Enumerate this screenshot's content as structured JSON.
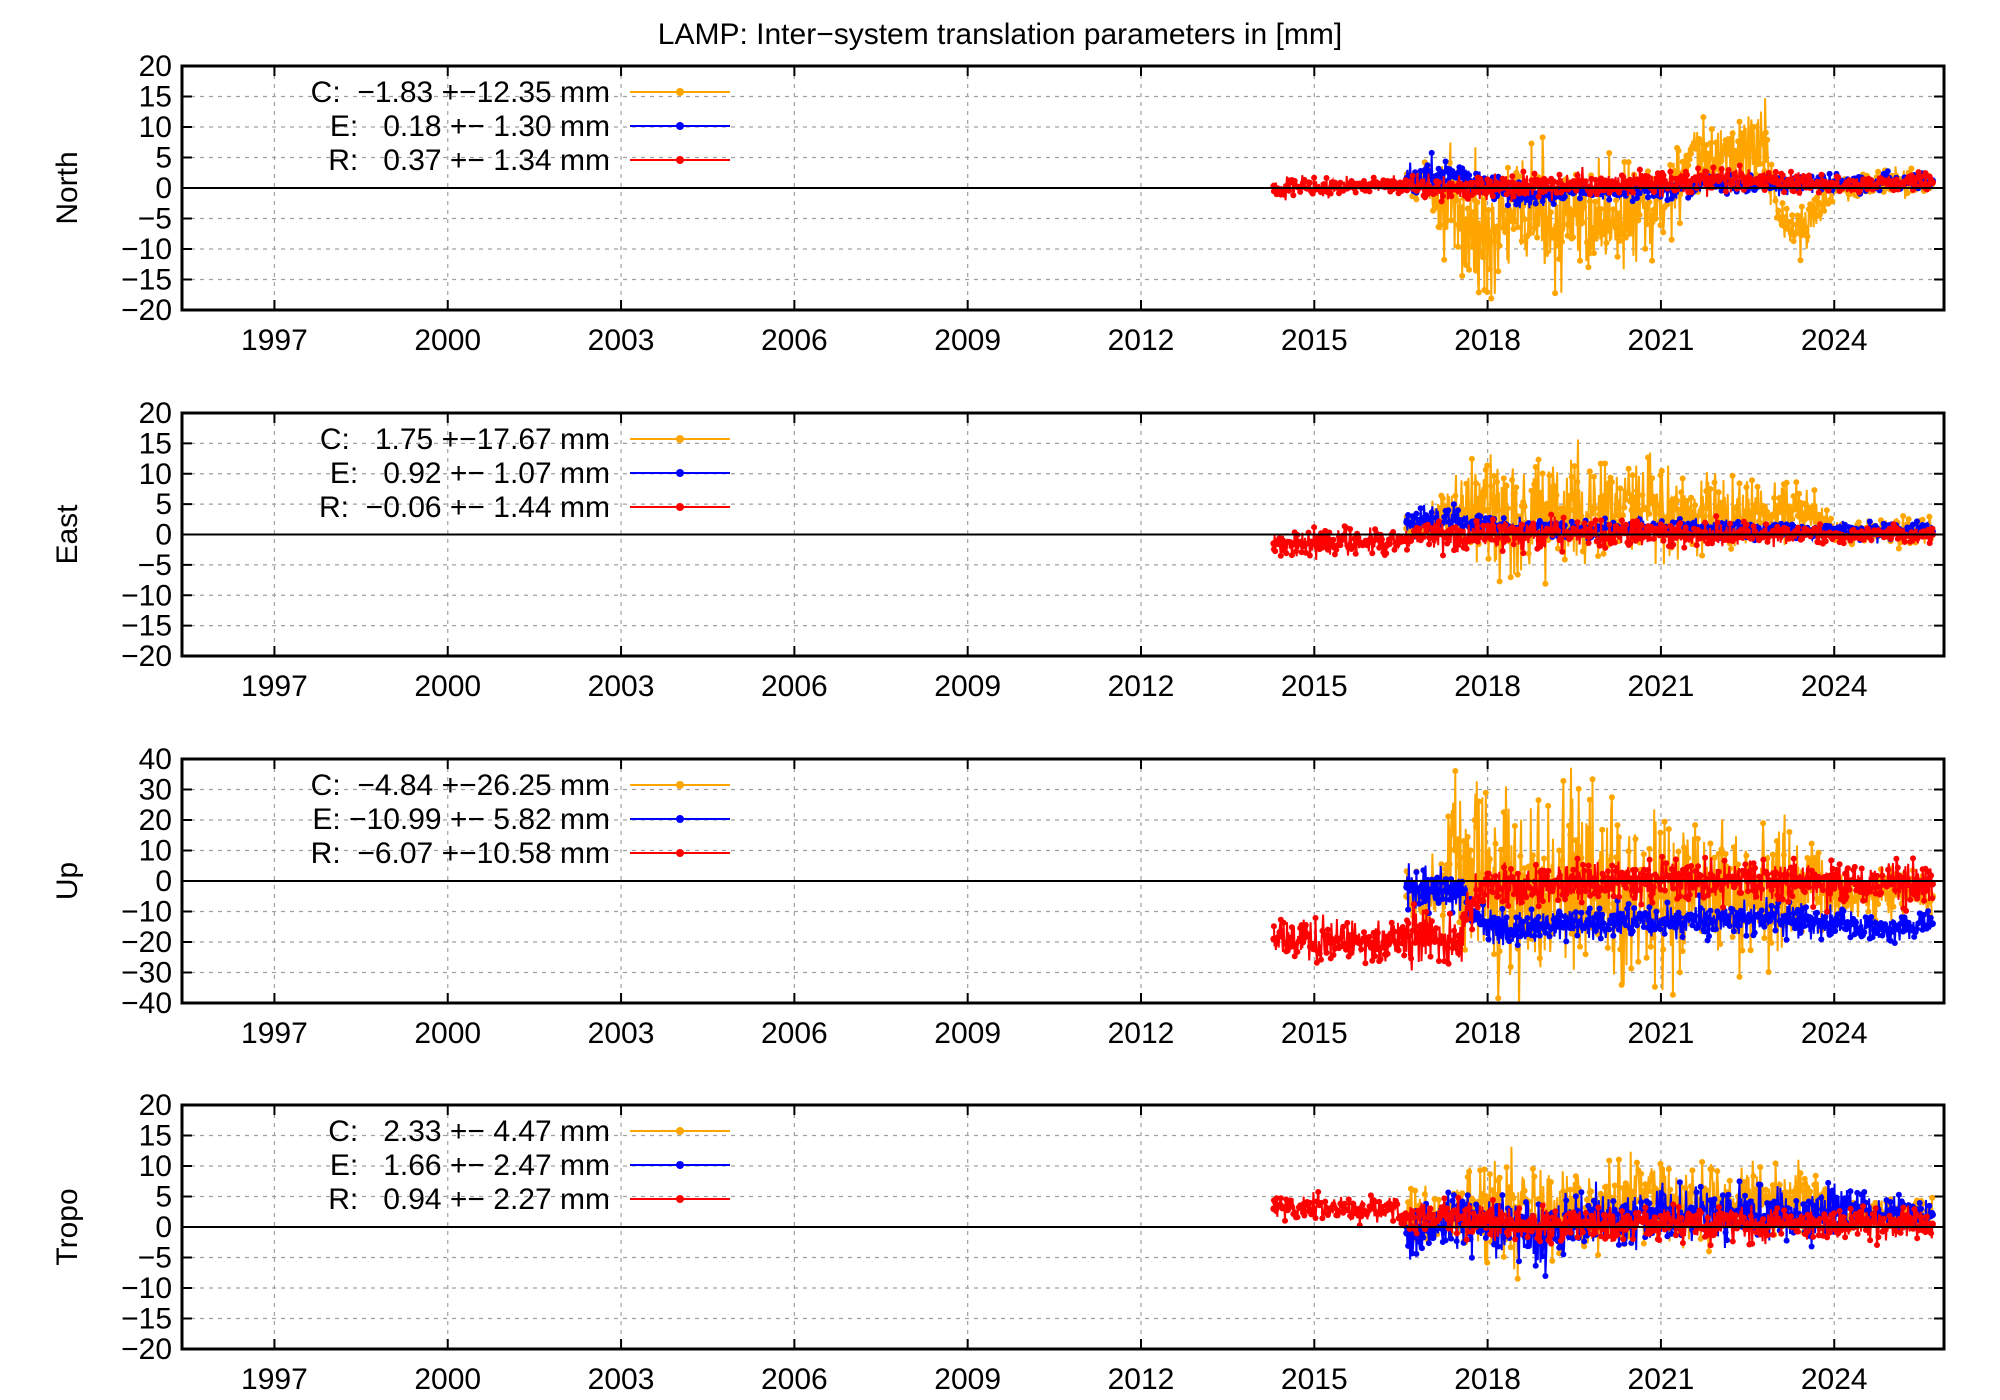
{
  "title": "LAMP: Inter−system translation parameters in [mm]",
  "colors": {
    "C": "#FFA500",
    "E": "#0000FF",
    "R": "#FF0000"
  },
  "chart_data": [
    {
      "type": "line",
      "ylabel": "North",
      "xlim": [
        1995.4,
        2025.9
      ],
      "ylim": [
        -20,
        20
      ],
      "xticks": [
        1997,
        2000,
        2003,
        2006,
        2009,
        2012,
        2015,
        2018,
        2021,
        2024
      ],
      "yticks": [
        -20,
        -15,
        -10,
        -5,
        0,
        5,
        10,
        15,
        20
      ],
      "legend": [
        {
          "key": "C",
          "text": "C:  −1.83 +−12.35 mm"
        },
        {
          "key": "E",
          "text": "E:   0.18 +− 1.30 mm"
        },
        {
          "key": "R",
          "text": "R:   0.37 +− 1.34 mm"
        }
      ],
      "series": [
        {
          "name": "C",
          "x": [
            2016.6,
            2017.0,
            2017.5,
            2017.9,
            2018.4,
            2018.9,
            2019.4,
            2019.9,
            2020.4,
            2020.9,
            2021.3,
            2021.8,
            2022.3,
            2022.8,
            2023.1,
            2023.5,
            2024.0,
            2024.5,
            2025.0,
            2025.7
          ],
          "values": [
            0.5,
            1.0,
            -6.0,
            -8.0,
            -5.0,
            -4.0,
            -6.0,
            -5.0,
            -4.5,
            -5.0,
            2.0,
            5.0,
            6.0,
            7.0,
            -6.0,
            -7.0,
            0.5,
            0.5,
            1.0,
            1.0
          ],
          "spread": [
            2,
            2,
            8,
            7,
            7,
            7,
            6,
            6,
            6,
            6,
            5,
            4,
            4,
            5,
            3,
            3,
            1.5,
            1.5,
            1.5,
            1.5
          ]
        },
        {
          "name": "E",
          "x": [
            2016.6,
            2017.0,
            2017.5,
            2017.9,
            2018.5,
            2019.0,
            2019.5,
            2020.0,
            2020.5,
            2021.0,
            2021.5,
            2022.0,
            2022.5,
            2023.0,
            2023.5,
            2024.0,
            2024.5,
            2025.0,
            2025.7
          ],
          "values": [
            1.5,
            2.0,
            2.5,
            1.0,
            -1.0,
            -1.0,
            -0.5,
            -0.5,
            -0.5,
            -0.5,
            0.0,
            0.5,
            0.5,
            0.5,
            0.8,
            1.0,
            0.8,
            1.0,
            1.2
          ],
          "spread": [
            2,
            2,
            1.5,
            1.5,
            1.5,
            1.2,
            1.0,
            1.0,
            1.0,
            1.0,
            1.0,
            1.0,
            1.0,
            1.0,
            1.0,
            1.0,
            1.0,
            1.0,
            1.0
          ]
        },
        {
          "name": "R",
          "x": [
            2014.3,
            2014.8,
            2015.3,
            2015.8,
            2016.3,
            2016.6,
            2017.0,
            2017.5,
            2018.0,
            2018.5,
            2019.0,
            2019.5,
            2020.0,
            2020.5,
            2021.0,
            2021.5,
            2022.0,
            2022.5,
            2023.0,
            2023.5,
            2024.0,
            2024.5,
            2025.0,
            2025.7
          ],
          "values": [
            0.3,
            0.4,
            0.2,
            0.3,
            0.4,
            0.5,
            0.0,
            0.2,
            0.0,
            0.3,
            0.5,
            0.6,
            0.5,
            0.7,
            0.5,
            1.0,
            1.2,
            1.5,
            1.0,
            0.8,
            0.5,
            0.6,
            0.8,
            0.9
          ],
          "spread": [
            1.2,
            1.2,
            1.0,
            1.0,
            1.0,
            1.2,
            1.5,
            1.5,
            1.5,
            1.5,
            1.5,
            1.5,
            1.5,
            1.5,
            1.5,
            1.5,
            1.5,
            1.5,
            1.3,
            1.2,
            1.0,
            1.0,
            1.0,
            1.0
          ]
        }
      ]
    },
    {
      "type": "line",
      "ylabel": "East",
      "xlim": [
        1995.4,
        2025.9
      ],
      "ylim": [
        -20,
        20
      ],
      "xticks": [
        1997,
        2000,
        2003,
        2006,
        2009,
        2012,
        2015,
        2018,
        2021,
        2024
      ],
      "yticks": [
        -20,
        -15,
        -10,
        -5,
        0,
        5,
        10,
        15,
        20
      ],
      "legend": [
        {
          "key": "C",
          "text": "C:   1.75 +−17.67 mm"
        },
        {
          "key": "E",
          "text": "E:   0.92 +− 1.07 mm"
        },
        {
          "key": "R",
          "text": "R:  −0.06 +− 1.44 mm"
        }
      ],
      "series": [
        {
          "name": "C",
          "x": [
            2016.6,
            2017.0,
            2017.5,
            2018.0,
            2018.5,
            2019.0,
            2019.5,
            2020.0,
            2020.5,
            2021.0,
            2021.5,
            2022.0,
            2022.5,
            2023.0,
            2023.5,
            2024.0,
            2024.5,
            2025.0,
            2025.7
          ],
          "values": [
            1.0,
            1.5,
            4.0,
            4.0,
            3.0,
            4.0,
            4.0,
            4.0,
            4.0,
            3.5,
            3.5,
            3.5,
            3.5,
            4.0,
            5.0,
            0.5,
            0.5,
            0.5,
            0.5
          ],
          "spread": [
            2,
            2,
            5,
            8,
            8,
            7,
            7,
            6,
            6,
            6,
            5,
            5,
            4,
            4,
            3,
            1.5,
            1.5,
            1.5,
            1.5
          ]
        },
        {
          "name": "E",
          "x": [
            2016.6,
            2017.0,
            2017.5,
            2018.0,
            2018.5,
            2019.0,
            2019.5,
            2020.0,
            2020.5,
            2021.0,
            2021.5,
            2022.0,
            2022.5,
            2023.0,
            2023.5,
            2024.0,
            2024.5,
            2025.0,
            2025.7
          ],
          "values": [
            2.0,
            2.5,
            2.0,
            1.5,
            1.0,
            1.0,
            0.8,
            0.8,
            1.0,
            1.0,
            1.0,
            0.8,
            0.8,
            0.8,
            0.5,
            0.5,
            0.5,
            0.5,
            0.5
          ],
          "spread": [
            2,
            2,
            1.5,
            1.2,
            1.0,
            1.0,
            1.0,
            1.0,
            1.0,
            1.0,
            1.0,
            1.0,
            1.0,
            1.0,
            1.0,
            1.0,
            1.0,
            1.0,
            1.0
          ]
        },
        {
          "name": "R",
          "x": [
            2014.3,
            2014.8,
            2015.3,
            2015.8,
            2016.3,
            2016.6,
            2017.0,
            2017.5,
            2018.0,
            2018.5,
            2019.0,
            2019.5,
            2020.0,
            2020.5,
            2021.0,
            2021.5,
            2022.0,
            2022.5,
            2023.0,
            2023.5,
            2024.0,
            2024.5,
            2025.0,
            2025.7
          ],
          "values": [
            -1.5,
            -1.5,
            -1.2,
            -1.5,
            -1.5,
            -0.5,
            -0.5,
            -0.5,
            0.0,
            0.0,
            0.2,
            0.2,
            0.0,
            0.2,
            0.2,
            0.0,
            0.0,
            0.0,
            0.0,
            0.0,
            0.0,
            0.0,
            0.0,
            0.0
          ],
          "spread": [
            1.5,
            1.5,
            1.5,
            1.5,
            1.5,
            1.5,
            1.5,
            1.5,
            1.8,
            1.8,
            1.8,
            1.5,
            1.5,
            1.5,
            1.5,
            1.5,
            1.5,
            1.2,
            1.2,
            1.2,
            1.0,
            1.0,
            1.0,
            1.0
          ]
        }
      ]
    },
    {
      "type": "line",
      "ylabel": "Up",
      "xlim": [
        1995.4,
        2025.9
      ],
      "ylim": [
        -40,
        40
      ],
      "xticks": [
        1997,
        2000,
        2003,
        2006,
        2009,
        2012,
        2015,
        2018,
        2021,
        2024
      ],
      "yticks": [
        -40,
        -30,
        -20,
        -10,
        0,
        10,
        20,
        30,
        40
      ],
      "legend": [
        {
          "key": "C",
          "text": "C:  −4.84 +−26.25 mm"
        },
        {
          "key": "E",
          "text": "E: −10.99 +− 5.82 mm"
        },
        {
          "key": "R",
          "text": "R:  −6.07 +−10.58 mm"
        }
      ],
      "series": [
        {
          "name": "C",
          "x": [
            2016.6,
            2017.0,
            2017.5,
            2018.0,
            2018.5,
            2019.0,
            2019.5,
            2020.0,
            2020.5,
            2021.0,
            2021.5,
            2022.0,
            2022.5,
            2023.0,
            2023.5,
            2024.0,
            2024.5,
            2025.0,
            2025.7
          ],
          "values": [
            -5,
            -5,
            5,
            0,
            -5,
            -5,
            0,
            -5,
            -5,
            -5,
            -5,
            -5,
            -5,
            -5,
            0,
            -5,
            -5,
            -5,
            -5
          ],
          "spread": [
            8,
            8,
            20,
            22,
            22,
            20,
            20,
            20,
            18,
            18,
            18,
            16,
            16,
            16,
            14,
            6,
            6,
            6,
            6
          ]
        },
        {
          "name": "E",
          "x": [
            2016.6,
            2017.0,
            2017.5,
            2017.9,
            2018.3,
            2018.8,
            2019.3,
            2019.8,
            2020.3,
            2020.8,
            2021.3,
            2021.8,
            2022.3,
            2022.8,
            2023.3,
            2023.8,
            2024.3,
            2024.8,
            2025.3,
            2025.7
          ],
          "values": [
            -2,
            -3,
            -3,
            -14,
            -15,
            -15,
            -14,
            -14,
            -13,
            -13,
            -13,
            -12,
            -12,
            -12,
            -13,
            -14,
            -14,
            -15,
            -15,
            -14
          ],
          "spread": [
            5,
            5,
            5,
            4,
            4,
            4,
            4,
            4,
            4,
            4,
            4,
            4,
            4,
            4,
            4,
            4,
            3,
            3,
            3,
            3
          ]
        },
        {
          "name": "R",
          "x": [
            2014.3,
            2014.8,
            2015.3,
            2015.8,
            2016.3,
            2016.6,
            2017.0,
            2017.5,
            2017.9,
            2018.5,
            2019.0,
            2019.5,
            2020.0,
            2020.5,
            2021.0,
            2021.5,
            2022.0,
            2022.5,
            2023.0,
            2023.5,
            2024.0,
            2024.5,
            2025.0,
            2025.7
          ],
          "values": [
            -19,
            -20,
            -19,
            -20,
            -20,
            -18,
            -19,
            -18,
            -1,
            -1,
            -1,
            0,
            0,
            0,
            0,
            0,
            0,
            0,
            0,
            0,
            -1,
            -1,
            -1,
            -1
          ],
          "spread": [
            5,
            5,
            5,
            5,
            5,
            6,
            6,
            6,
            5,
            5,
            5,
            5,
            5,
            5,
            5,
            5,
            5,
            5,
            5,
            5,
            5,
            5,
            5,
            5
          ]
        }
      ]
    },
    {
      "type": "line",
      "ylabel": "Tropo",
      "xlim": [
        1995.4,
        2025.9
      ],
      "ylim": [
        -20,
        20
      ],
      "xticks": [
        1997,
        2000,
        2003,
        2006,
        2009,
        2012,
        2015,
        2018,
        2021,
        2024
      ],
      "yticks": [
        -20,
        -15,
        -10,
        -5,
        0,
        5,
        10,
        15,
        20
      ],
      "legend": [
        {
          "key": "C",
          "text": "C:   2.33 +− 4.47 mm"
        },
        {
          "key": "E",
          "text": "E:   1.66 +− 2.47 mm"
        },
        {
          "key": "R",
          "text": "R:   0.94 +− 2.27 mm"
        }
      ],
      "series": [
        {
          "name": "C",
          "x": [
            2016.6,
            2017.0,
            2017.5,
            2018.0,
            2018.5,
            2019.0,
            2019.5,
            2020.0,
            2020.5,
            2021.0,
            2021.5,
            2022.0,
            2022.5,
            2023.0,
            2023.5,
            2024.0,
            2024.5,
            2025.0,
            2025.7
          ],
          "values": [
            2,
            2,
            2,
            3,
            2,
            2,
            3,
            3,
            4,
            4,
            4,
            4,
            5,
            5,
            5,
            2,
            2,
            2,
            2
          ],
          "spread": [
            3,
            3,
            4,
            6,
            6,
            5,
            5,
            5,
            5,
            5,
            5,
            4,
            4,
            4,
            4,
            2,
            2,
            2,
            2
          ]
        },
        {
          "name": "E",
          "x": [
            2016.6,
            2017.0,
            2017.5,
            2018.0,
            2018.5,
            2019.0,
            2019.5,
            2020.0,
            2020.5,
            2021.0,
            2021.5,
            2022.0,
            2022.5,
            2023.0,
            2023.5,
            2024.0,
            2024.5,
            2025.0,
            2025.7
          ],
          "values": [
            -1,
            0,
            1,
            1,
            0,
            -1,
            1,
            2,
            2,
            2,
            2,
            2,
            2,
            2,
            2,
            3,
            3,
            2,
            2
          ],
          "spread": [
            3,
            3,
            3,
            3,
            4,
            4,
            3,
            3,
            3,
            3,
            3,
            3,
            3,
            3,
            3,
            3,
            2,
            2,
            2
          ]
        },
        {
          "name": "R",
          "x": [
            2014.3,
            2014.8,
            2015.3,
            2015.8,
            2016.3,
            2016.6,
            2017.0,
            2017.5,
            2018.0,
            2018.5,
            2019.0,
            2019.5,
            2020.0,
            2020.5,
            2021.0,
            2021.5,
            2022.0,
            2022.5,
            2023.0,
            2023.5,
            2024.0,
            2024.5,
            2025.0,
            2025.7
          ],
          "values": [
            3,
            3,
            3,
            3,
            3,
            1.5,
            1.5,
            1.5,
            1.0,
            0.5,
            0.5,
            0.5,
            0.5,
            0.5,
            0.5,
            0.5,
            0.5,
            0.5,
            0.5,
            0.5,
            0.5,
            0.5,
            0.5,
            0.5
          ],
          "spread": [
            1.5,
            1.5,
            1.5,
            1.5,
            1.5,
            2,
            2,
            2,
            2,
            2,
            2,
            2,
            2,
            2,
            2,
            2,
            2,
            2,
            2,
            2,
            2,
            2,
            2,
            2
          ]
        }
      ]
    }
  ]
}
